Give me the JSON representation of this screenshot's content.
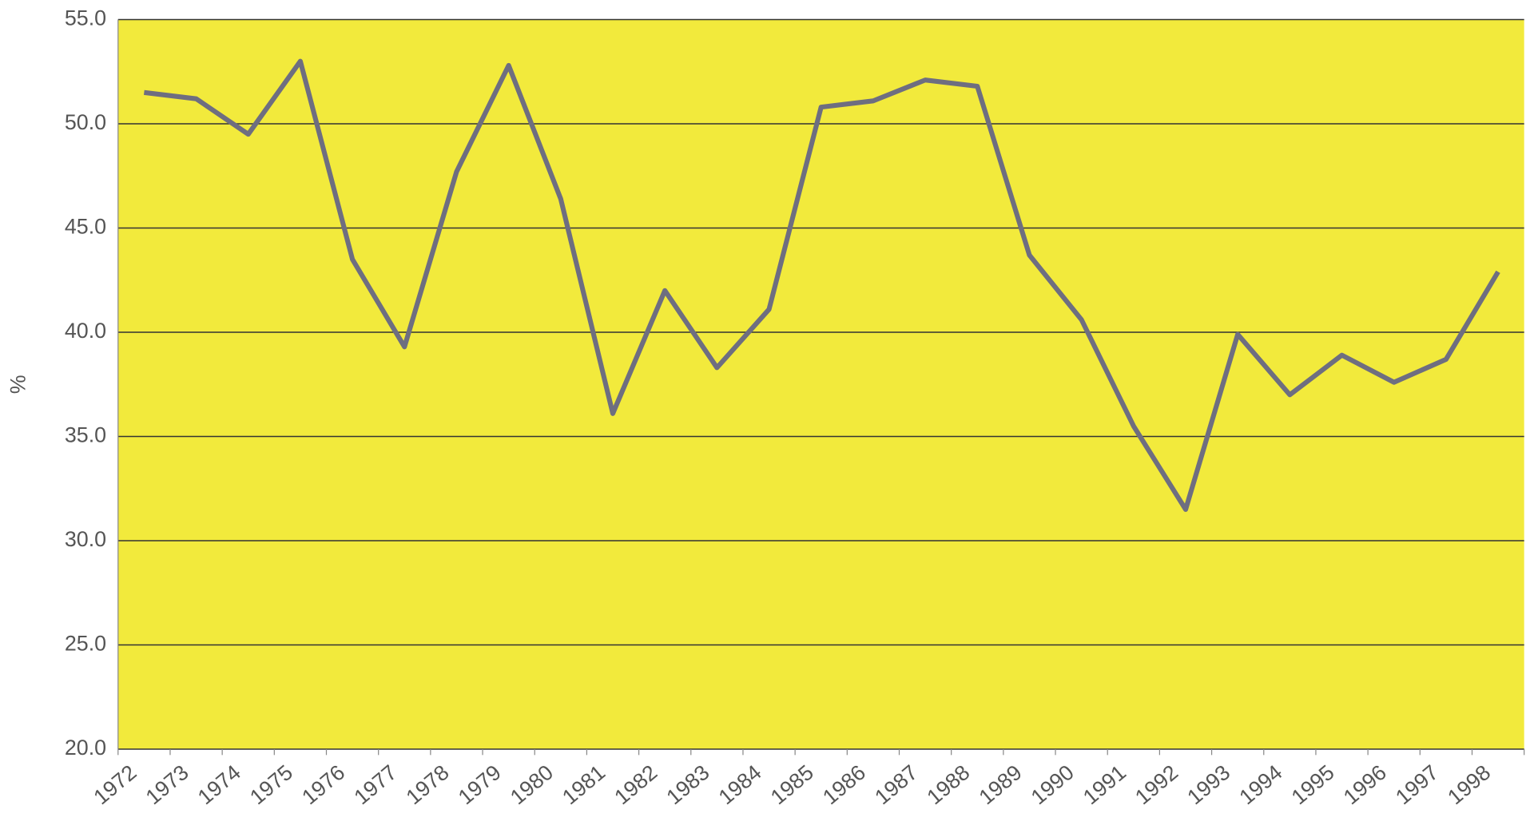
{
  "chart_data": {
    "type": "line",
    "ylabel": "%",
    "categories": [
      "1972",
      "1973",
      "1974",
      "1975",
      "1976",
      "1977",
      "1978",
      "1979",
      "1980",
      "1981",
      "1982",
      "1983",
      "1984",
      "1985",
      "1986",
      "1987",
      "1988",
      "1989",
      "1990",
      "1991",
      "1992",
      "1993",
      "1994",
      "1995",
      "1996",
      "1997",
      "1998"
    ],
    "series": [
      {
        "name": "",
        "color": "#6e6e80",
        "values": [
          51.5,
          51.2,
          49.5,
          53.0,
          43.5,
          39.3,
          47.7,
          52.8,
          46.4,
          36.1,
          42.0,
          38.3,
          41.1,
          50.8,
          51.1,
          52.1,
          51.8,
          43.7,
          40.6,
          35.5,
          31.5,
          39.9,
          37.0,
          38.9,
          37.6,
          38.7,
          42.9
        ]
      }
    ],
    "ylim": [
      20,
      55
    ],
    "yticks": [
      {
        "value": 20,
        "label": "20.0"
      },
      {
        "value": 25,
        "label": "25.0"
      },
      {
        "value": 30,
        "label": "30.0"
      },
      {
        "value": 35,
        "label": "35.0"
      },
      {
        "value": 40,
        "label": "40.0"
      },
      {
        "value": 45,
        "label": "45.0"
      },
      {
        "value": 50,
        "label": "50.0"
      },
      {
        "value": 55,
        "label": "55.0"
      }
    ],
    "grid": true,
    "background": "#f2ea3c"
  }
}
